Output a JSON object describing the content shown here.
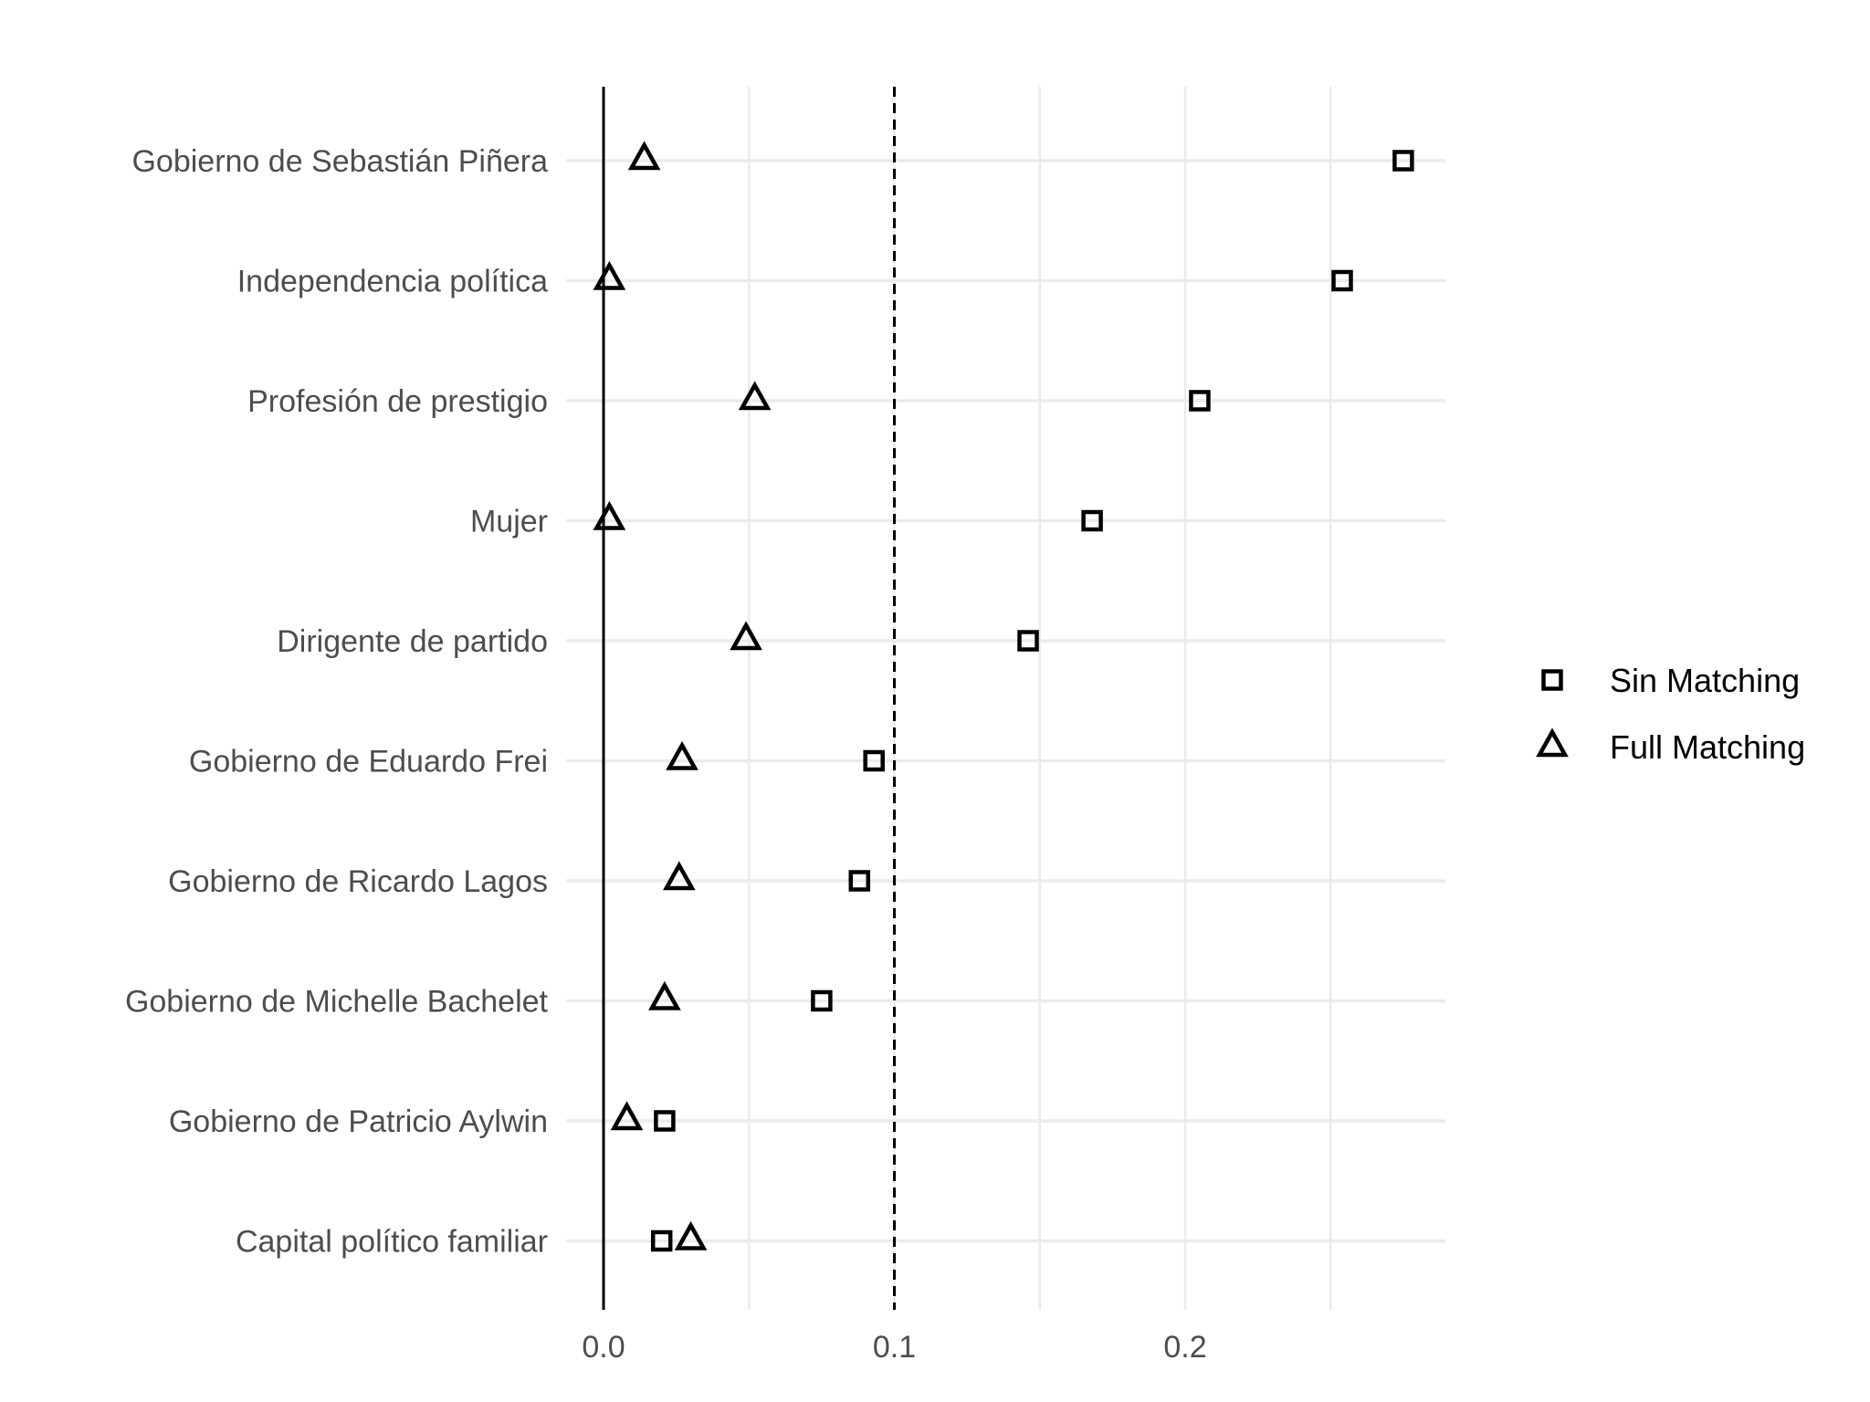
{
  "chart_data": {
    "type": "scatter",
    "categories": [
      "Gobierno de Sebastián Piñera",
      "Independencia política",
      "Profesión de prestigio",
      "Mujer",
      "Dirigente de partido",
      "Gobierno de Eduardo Frei",
      "Gobierno de Ricardo Lagos",
      "Gobierno de Michelle Bachelet",
      "Gobierno de Patricio Aylwin",
      "Capital político familiar"
    ],
    "series": [
      {
        "name": "Sin Matching",
        "marker": "square",
        "values": [
          0.275,
          0.254,
          0.205,
          0.168,
          0.146,
          0.093,
          0.088,
          0.075,
          0.021,
          0.02
        ]
      },
      {
        "name": "Full Matching",
        "marker": "triangle",
        "values": [
          0.014,
          0.002,
          0.052,
          0.002,
          0.049,
          0.027,
          0.026,
          0.021,
          0.008,
          0.03
        ]
      }
    ],
    "x_ticks": [
      "0.0",
      "0.1",
      "0.2"
    ],
    "x_tick_values": [
      0.0,
      0.1,
      0.2
    ],
    "xlim": [
      -0.014,
      0.29
    ],
    "reference_lines": [
      {
        "x": 0.0,
        "style": "solid"
      },
      {
        "x": 0.1,
        "style": "dashed"
      }
    ],
    "xlabel": "",
    "ylabel": "",
    "title": "",
    "grid": true,
    "legend_position": "right",
    "colors": {
      "marker": "#000000",
      "grid": "#ebebeb",
      "text": "#4d4d4d",
      "legend_text": "#000000"
    }
  }
}
